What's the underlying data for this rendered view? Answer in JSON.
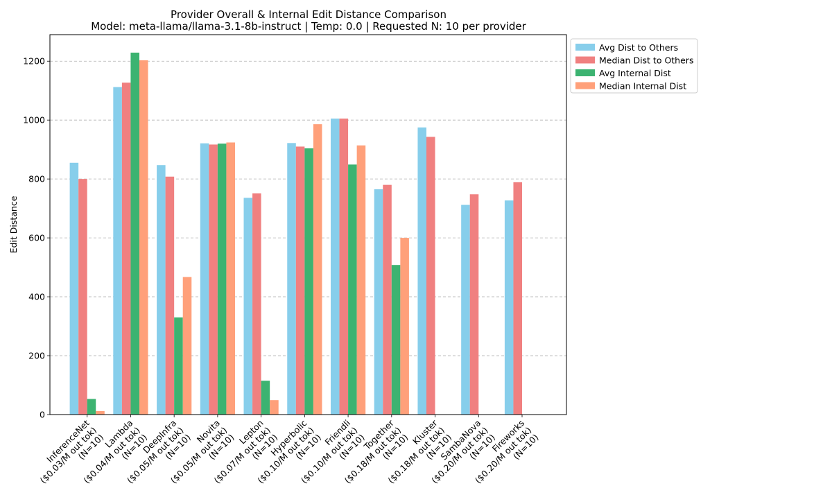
{
  "chart_data": {
    "type": "bar",
    "title": "Provider Overall & Internal Edit Distance Comparison",
    "subtitle": "Model: meta-llama/llama-3.1-8b-instruct | Temp: 0.0 | Requested N: 10 per provider",
    "xlabel": "",
    "ylabel": "Edit Distance",
    "ylim": [
      0,
      1290
    ],
    "yticks": [
      0,
      200,
      400,
      600,
      800,
      1000,
      1200
    ],
    "grid": "y-dashed",
    "legend_position": "outside-top-right",
    "categories": [
      [
        "InferenceNet",
        "($0.03/M out tok)",
        "(N=10)"
      ],
      [
        "Lambda",
        "($0.04/M out tok)",
        "(N=10)"
      ],
      [
        "DeepInfra",
        "($0.05/M out tok)",
        "(N=10)"
      ],
      [
        "Novita",
        "($0.05/M out tok)",
        "(N=10)"
      ],
      [
        "Lepton",
        "($0.07/M out tok)",
        "(N=10)"
      ],
      [
        "Hyperbolic",
        "($0.10/M out tok)",
        "(N=10)"
      ],
      [
        "Friendli",
        "($0.10/M out tok)",
        "(N=10)"
      ],
      [
        "Together",
        "($0.18/M out tok)",
        "(N=10)"
      ],
      [
        "Kluster",
        "($0.18/M out tok)",
        "(N=10)"
      ],
      [
        "SambaNova",
        "($0.20/M out tok)",
        "(N=10)"
      ],
      [
        "Fireworks",
        "($0.20/M out tok)",
        "(N=10)"
      ]
    ],
    "series": [
      {
        "name": "Avg Dist to Others",
        "color": "#87ceeb",
        "values": [
          855,
          1112,
          847,
          921,
          736,
          922,
          1005,
          765,
          975,
          712,
          727
        ]
      },
      {
        "name": "Median Dist to Others",
        "color": "#f08080",
        "values": [
          800,
          1127,
          808,
          917,
          751,
          910,
          1005,
          780,
          943,
          748,
          789
        ]
      },
      {
        "name": "Avg Internal Dist",
        "color": "#3cb371",
        "values": [
          53,
          1229,
          330,
          920,
          115,
          904,
          849,
          508,
          null,
          null,
          null
        ]
      },
      {
        "name": "Median Internal Dist",
        "color": "#ffa07a",
        "values": [
          12,
          1203,
          467,
          924,
          49,
          986,
          914,
          600,
          null,
          null,
          null
        ]
      }
    ]
  }
}
